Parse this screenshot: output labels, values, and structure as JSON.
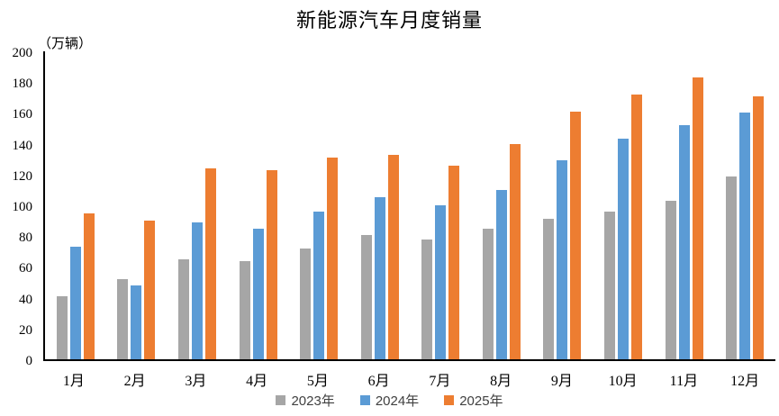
{
  "chart_data": {
    "type": "bar",
    "title": "新能源汽车月度销量",
    "unit_label": "（万辆）",
    "categories": [
      "1月",
      "2月",
      "3月",
      "4月",
      "5月",
      "6月",
      "7月",
      "8月",
      "9月",
      "10月",
      "11月",
      "12月"
    ],
    "series": [
      {
        "name": "2023年",
        "color": "#A6A6A6",
        "values": [
          41,
          52,
          65,
          64,
          72,
          81,
          78,
          85,
          91,
          96,
          103,
          119
        ]
      },
      {
        "name": "2024年",
        "color": "#5B9BD5",
        "values": [
          73,
          48,
          89,
          85,
          96,
          105,
          100,
          110,
          129,
          143,
          152,
          160
        ]
      },
      {
        "name": "2025年",
        "color": "#ED7D31",
        "values": [
          95,
          90,
          124,
          123,
          131,
          133,
          126,
          140,
          161,
          172,
          183,
          171
        ]
      }
    ],
    "xlabel": "",
    "ylabel": "（万辆）",
    "ylim": [
      0,
      200
    ],
    "yticks": [
      0,
      20,
      40,
      60,
      80,
      100,
      120,
      140,
      160,
      180,
      200
    ],
    "grid": false,
    "legend_position": "bottom",
    "axis_color": "#000000",
    "background_color": "#FFFFFF"
  }
}
